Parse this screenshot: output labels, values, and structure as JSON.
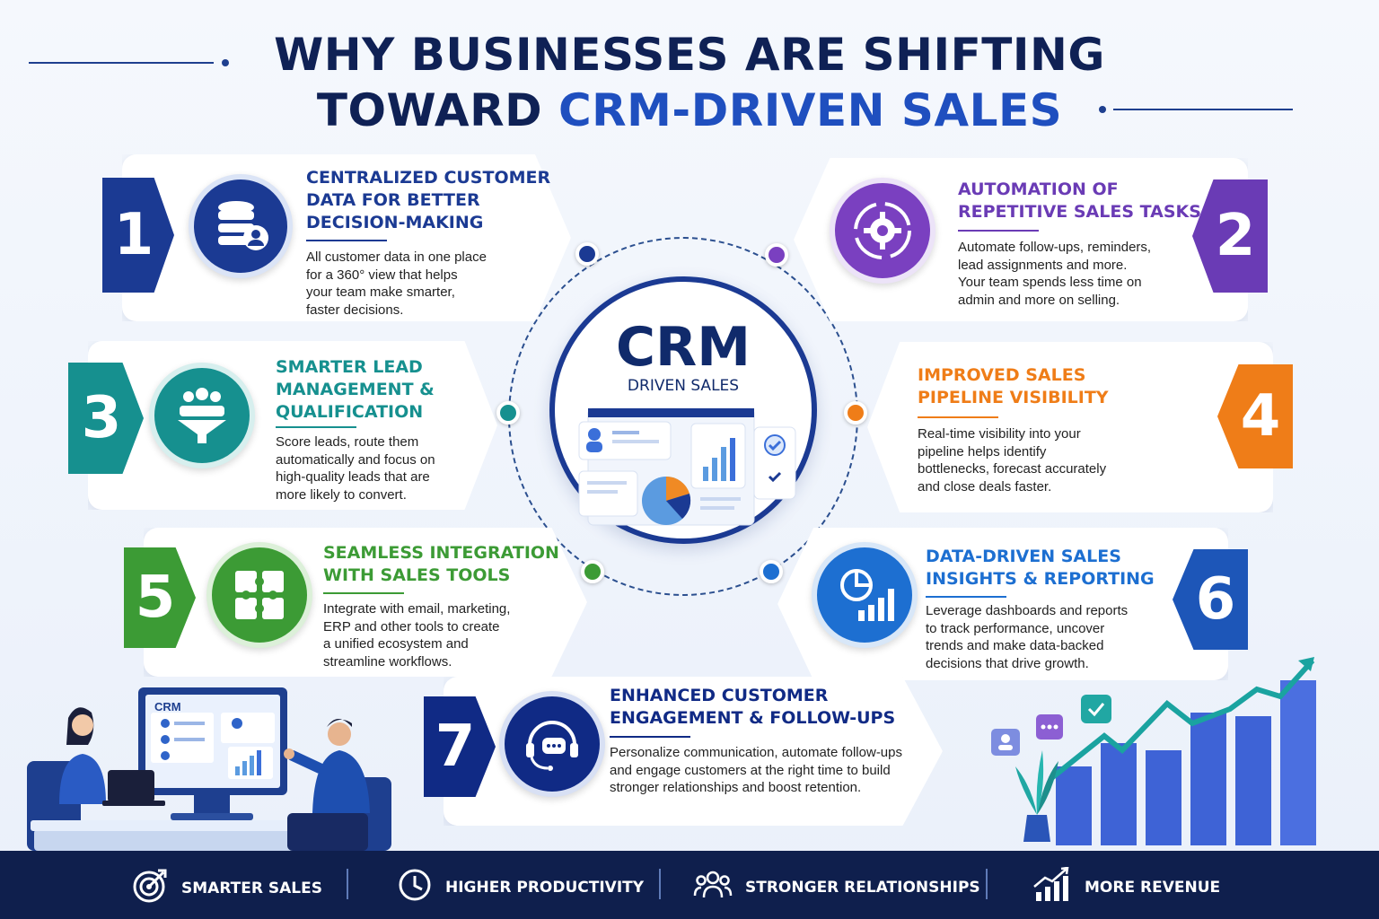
{
  "header": {
    "title_line1": "WHY BUSINESSES ARE SHIFTING",
    "title_line2_prefix": "TOWARD ",
    "title_line2_highlight": "CRM-DRIVEN SALES"
  },
  "center": {
    "title": "CRM",
    "subtitle": "DRIVEN SALES"
  },
  "cards": [
    {
      "number": "1",
      "title": "Centralized Customer\nData for Better\nDecision-Making",
      "description": "All customer data in one place\nfor a 360° view that helps\nyour team make smarter,\nfaster decisions.",
      "color": "#1b3a93",
      "icon": "database-user-icon"
    },
    {
      "number": "2",
      "title": "Automation of\nRepetitive Sales Tasks",
      "description": "Automate follow-ups, reminders,\nlead assignments and more.\nYour team spends less time on\nadmin and more on selling.",
      "color": "#6a3bb5",
      "icon": "gear-cycle-icon"
    },
    {
      "number": "3",
      "title": "Smarter Lead\nManagement &\nQualification",
      "description": "Score leads,  route them\nautomatically and focus on\nhigh-quality leads that are\nmore likely to convert.",
      "color": "#16908f",
      "icon": "funnel-people-icon"
    },
    {
      "number": "4",
      "title": "Improved Sales\nPipeline Visibility",
      "description": "Real-time visibility into your\npipeline helps identify\nbottlenecks, forecast accurately\nand close deals faster.",
      "color": "#ef7d18",
      "icon": "pipeline-icon"
    },
    {
      "number": "5",
      "title": "Seamless Integration\nwith Sales Tools",
      "description": "Integrate with email, marketing,\nERP and other tools to create\na unified ecosystem and\nstreamline workflows.",
      "color": "#3c9b35",
      "icon": "puzzle-icon"
    },
    {
      "number": "6",
      "title": "Data-Driven Sales\nInsights & Reporting",
      "description": "Leverage dashboards and reports\nto track performance, uncover\ntrends and make data-backed\ndecisions that drive growth.",
      "color": "#1d6fd1",
      "icon": "pie-bar-chart-icon"
    },
    {
      "number": "7",
      "title": "Enhanced Customer\nEngagement & Follow-Ups",
      "description": "Personalize communication, automate follow-ups\nand engage customers at the right time to build\nstronger relationships and boost retention.",
      "color": "#102a85",
      "icon": "headset-chat-icon"
    }
  ],
  "illustration": {
    "monitor_label": "CRM"
  },
  "footer": {
    "items": [
      {
        "label": "SMARTER SALES",
        "icon": "target-icon"
      },
      {
        "label": "HIGHER PRODUCTIVITY",
        "icon": "clock-icon"
      },
      {
        "label": "STRONGER RELATIONSHIPS",
        "icon": "people-icon"
      },
      {
        "label": "MORE REVENUE",
        "icon": "growth-chart-icon"
      }
    ]
  }
}
